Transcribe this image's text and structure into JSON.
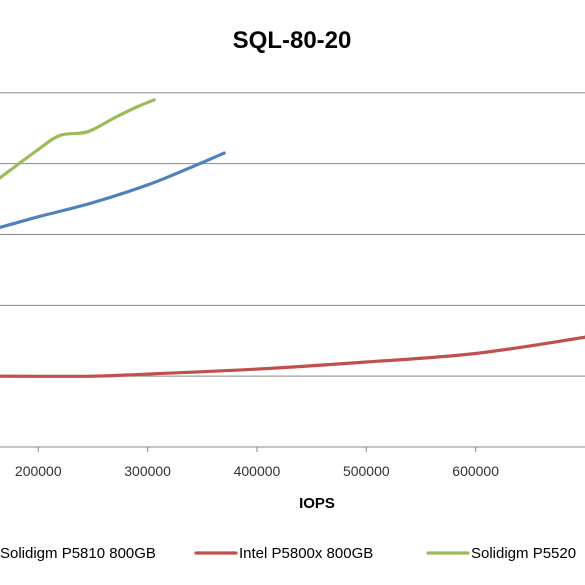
{
  "chart_data": {
    "type": "line",
    "title": "SQL-80-20",
    "xlabel": "IOPS",
    "ylabel": "",
    "xlim": [
      165000,
      700000
    ],
    "ylim": [
      0,
      6
    ],
    "grid": true,
    "legend": "bottom",
    "x_ticks": [
      {
        "value": 200000,
        "label": "200000"
      },
      {
        "value": 300000,
        "label": "300000"
      },
      {
        "value": 400000,
        "label": "400000"
      },
      {
        "value": 500000,
        "label": "500000"
      },
      {
        "value": 600000,
        "label": "600000"
      }
    ],
    "y_gridlines": [
      1,
      2,
      3,
      4,
      5
    ],
    "series": [
      {
        "name": "Solidigm P5810 800GB",
        "color": "#4F81BD",
        "points": [
          [
            165000,
            3.1
          ],
          [
            200000,
            3.25
          ],
          [
            250000,
            3.45
          ],
          [
            300000,
            3.7
          ],
          [
            340000,
            3.95
          ],
          [
            370000,
            4.15
          ]
        ]
      },
      {
        "name": "Intel P5800x 800GB",
        "color": "#C0504D",
        "points": [
          [
            165000,
            1.0
          ],
          [
            250000,
            1.0
          ],
          [
            300000,
            1.03
          ],
          [
            400000,
            1.1
          ],
          [
            500000,
            1.2
          ],
          [
            600000,
            1.32
          ],
          [
            700000,
            1.55
          ]
        ]
      },
      {
        "name": "Solidigm P5520",
        "color": "#9BBB59",
        "points": [
          [
            165000,
            3.8
          ],
          [
            200000,
            4.2
          ],
          [
            220000,
            4.4
          ],
          [
            245000,
            4.45
          ],
          [
            270000,
            4.65
          ],
          [
            290000,
            4.8
          ],
          [
            306000,
            4.9
          ]
        ]
      }
    ]
  }
}
